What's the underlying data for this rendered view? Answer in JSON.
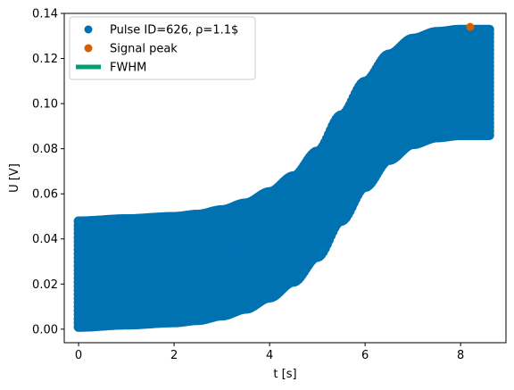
{
  "chart_data": {
    "type": "scatter",
    "title": "",
    "xlabel": "t [s]",
    "ylabel": "U [V]",
    "xlim": [
      -0.3,
      8.95
    ],
    "ylim": [
      -0.006,
      0.14
    ],
    "xticks": [
      0,
      2,
      4,
      6,
      8
    ],
    "xtick_labels": [
      "0",
      "2",
      "4",
      "6",
      "8"
    ],
    "yticks": [
      0.0,
      0.02,
      0.04,
      0.06,
      0.08,
      0.1,
      0.12,
      0.14
    ],
    "ytick_labels": [
      "0.00",
      "0.02",
      "0.04",
      "0.06",
      "0.08",
      "0.10",
      "0.12",
      "0.14"
    ],
    "grid": false,
    "legend_position": "top-left",
    "legend": [
      {
        "label": "Pulse ID=626, ρ=1.1$",
        "marker": "circle",
        "color": "#0072b2"
      },
      {
        "label": "Signal peak",
        "marker": "circle",
        "color": "#d55e00"
      },
      {
        "label": "FWHM",
        "marker": "line",
        "color": "#009e73"
      }
    ],
    "series": [
      {
        "name": "Pulse ID=626, ρ=1.1$",
        "kind": "scatter-band",
        "color": "#0072b2",
        "x_range": [
          0.0,
          8.6
        ],
        "center_curve": {
          "x": [
            0.0,
            1.0,
            2.0,
            2.5,
            3.0,
            3.5,
            4.0,
            4.5,
            5.0,
            5.5,
            6.0,
            6.5,
            7.0,
            7.5,
            8.0,
            8.6
          ],
          "y": [
            0.025,
            0.026,
            0.027,
            0.028,
            0.03,
            0.033,
            0.038,
            0.045,
            0.056,
            0.072,
            0.087,
            0.099,
            0.106,
            0.109,
            0.11,
            0.11
          ]
        },
        "band_half_width": 0.024
      },
      {
        "name": "Signal peak",
        "kind": "point",
        "color": "#d55e00",
        "x": [
          8.2
        ],
        "y": [
          0.134
        ]
      },
      {
        "name": "FWHM",
        "kind": "line",
        "color": "#009e73",
        "x": [],
        "y": []
      }
    ]
  }
}
